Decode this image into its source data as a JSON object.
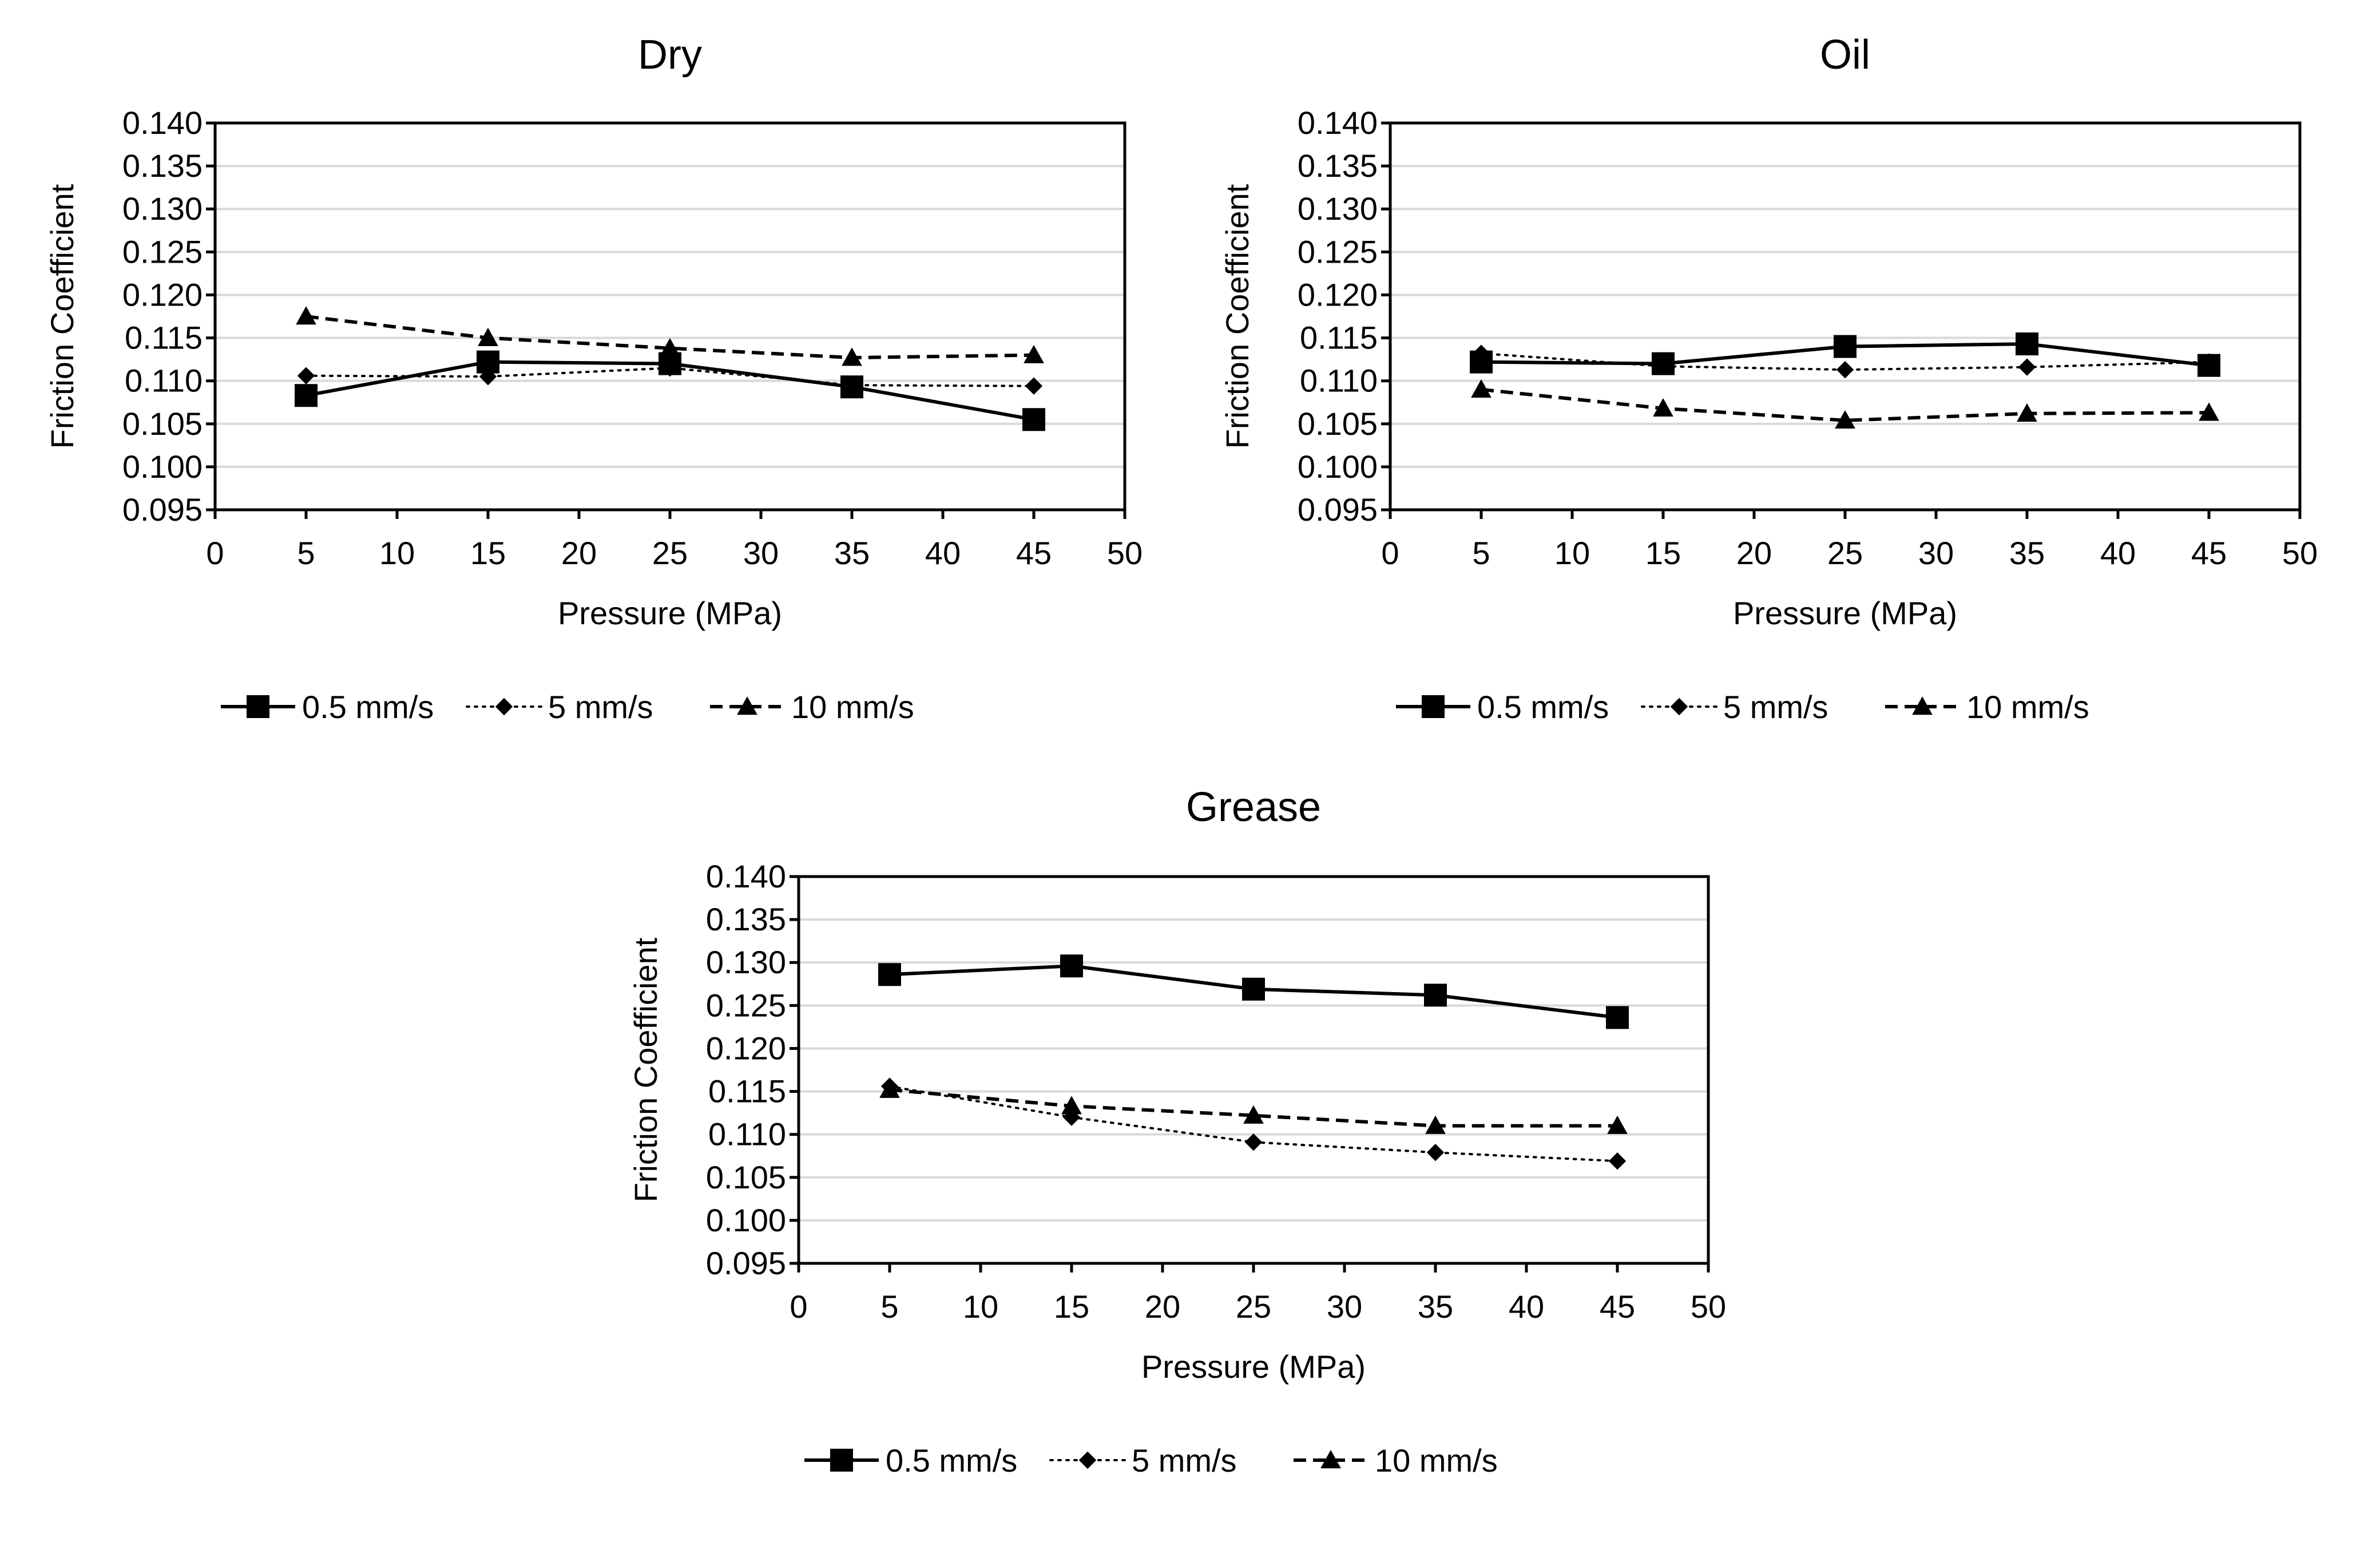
{
  "chart_data": [
    {
      "type": "line",
      "title": "Dry",
      "xlabel": "Pressure (MPa)",
      "ylabel": "Friction Coefficient",
      "xlim": [
        0,
        50
      ],
      "ylim": [
        0.095,
        0.14
      ],
      "x_ticks": [
        0,
        5,
        10,
        15,
        20,
        25,
        30,
        35,
        40,
        45,
        50
      ],
      "y_ticks": [
        0.095,
        0.1,
        0.105,
        0.11,
        0.115,
        0.12,
        0.125,
        0.13,
        0.135,
        0.14
      ],
      "y_tick_labels": [
        "0.095",
        "0.100",
        "0.105",
        "0.110",
        "0.115",
        "0.120",
        "0.125",
        "0.130",
        "0.135",
        "0.140"
      ],
      "grid": "horizontal",
      "legend_position": "bottom",
      "x": [
        5,
        15,
        25,
        35,
        45
      ],
      "series": [
        {
          "name": "0.5 mm/s",
          "values": [
            0.1083,
            0.1122,
            0.112,
            0.1093,
            0.1055
          ],
          "marker": "square",
          "dash": "solid"
        },
        {
          "name": "5 mm/s",
          "values": [
            0.1106,
            0.1105,
            0.1115,
            0.1095,
            0.1094
          ],
          "marker": "diamond",
          "dash": "dotted"
        },
        {
          "name": "10 mm/s",
          "values": [
            0.1175,
            0.115,
            0.1138,
            0.1127,
            0.113
          ],
          "marker": "triangle",
          "dash": "dashed"
        }
      ]
    },
    {
      "type": "line",
      "title": "Oil",
      "xlabel": "Pressure (MPa)",
      "ylabel": "Friction Coefficient",
      "xlim": [
        0,
        50
      ],
      "ylim": [
        0.095,
        0.14
      ],
      "x_ticks": [
        0,
        5,
        10,
        15,
        20,
        25,
        30,
        35,
        40,
        45,
        50
      ],
      "y_ticks": [
        0.095,
        0.1,
        0.105,
        0.11,
        0.115,
        0.12,
        0.125,
        0.13,
        0.135,
        0.14
      ],
      "y_tick_labels": [
        "0.095",
        "0.100",
        "0.105",
        "0.110",
        "0.115",
        "0.120",
        "0.125",
        "0.130",
        "0.135",
        "0.140"
      ],
      "grid": "horizontal",
      "legend_position": "bottom",
      "x": [
        5,
        15,
        25,
        35,
        45
      ],
      "series": [
        {
          "name": "0.5 mm/s",
          "values": [
            0.1122,
            0.112,
            0.114,
            0.1143,
            0.1118
          ],
          "marker": "square",
          "dash": "solid"
        },
        {
          "name": "5 mm/s",
          "values": [
            0.1132,
            0.1117,
            0.1113,
            0.1116,
            0.1122
          ],
          "marker": "diamond",
          "dash": "dotted"
        },
        {
          "name": "10 mm/s",
          "values": [
            0.109,
            0.1068,
            0.1054,
            0.1062,
            0.1063
          ],
          "marker": "triangle",
          "dash": "dashed"
        }
      ]
    },
    {
      "type": "line",
      "title": "Grease",
      "xlabel": "Pressure (MPa)",
      "ylabel": "Friction Coefficient",
      "xlim": [
        0,
        50
      ],
      "ylim": [
        0.095,
        0.14
      ],
      "x_ticks": [
        0,
        5,
        10,
        15,
        20,
        25,
        30,
        35,
        40,
        45,
        50
      ],
      "y_ticks": [
        0.095,
        0.1,
        0.105,
        0.11,
        0.115,
        0.12,
        0.125,
        0.13,
        0.135,
        0.14
      ],
      "y_tick_labels": [
        "0.095",
        "0.100",
        "0.105",
        "0.110",
        "0.115",
        "0.120",
        "0.125",
        "0.130",
        "0.135",
        "0.140"
      ],
      "grid": "horizontal",
      "legend_position": "bottom",
      "x": [
        5,
        15,
        25,
        35,
        45
      ],
      "series": [
        {
          "name": "0.5 mm/s",
          "values": [
            0.1286,
            0.1296,
            0.1269,
            0.1262,
            0.1236
          ],
          "marker": "square",
          "dash": "solid"
        },
        {
          "name": "5 mm/s",
          "values": [
            0.1156,
            0.112,
            0.1091,
            0.1079,
            0.1069
          ],
          "marker": "diamond",
          "dash": "dotted"
        },
        {
          "name": "10 mm/s",
          "values": [
            0.1152,
            0.1133,
            0.1122,
            0.111,
            0.111
          ],
          "marker": "triangle",
          "dash": "dashed"
        }
      ]
    }
  ],
  "colors": {
    "series": "#000000",
    "gridline": "#d9d9d9",
    "frame": "#000000",
    "background": "#ffffff"
  }
}
